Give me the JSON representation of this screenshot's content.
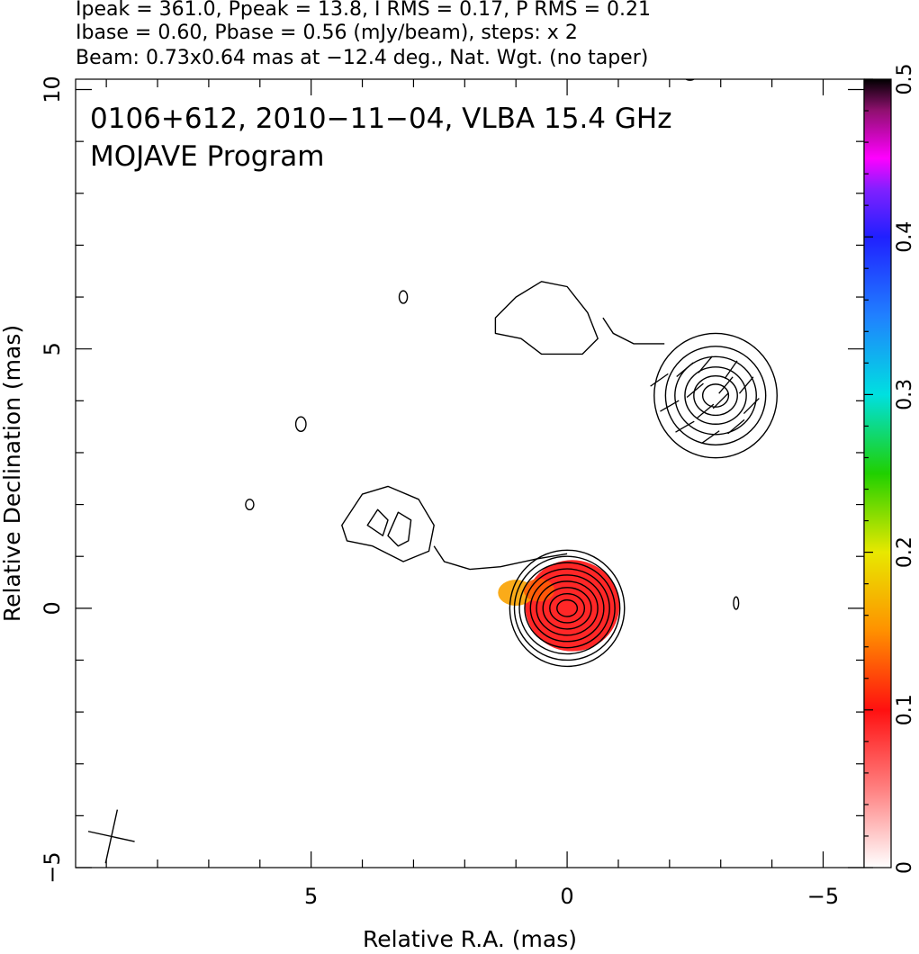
{
  "chart_data": {
    "type": "heatmap",
    "header_lines": [
      "Ipeak = 361.0, Ppeak = 13.8, I RMS = 0.17, P RMS = 0.21",
      "Ibase = 0.60, Pbase = 0.56 (mJy/beam), steps: x 2",
      "Beam: 0.73x0.64 mas at −12.4 deg., Nat. Wgt. (no taper)"
    ],
    "inset_title": "0106+612, 2010−11−04, VLBA 15.4 GHz",
    "inset_subtitle": "MOJAVE Program",
    "xlabel": "Relative R.A. (mas)",
    "ylabel": "Relative Declination (mas)",
    "xlim": [
      9.6,
      -5.8
    ],
    "ylim": [
      -5.0,
      10.2
    ],
    "x_ticks": [
      {
        "value": 5,
        "label": "5"
      },
      {
        "value": 0,
        "label": "0"
      },
      {
        "value": -5,
        "label": "−5"
      }
    ],
    "y_ticks": [
      {
        "value": -5,
        "label": "−5"
      },
      {
        "value": 0,
        "label": "0"
      },
      {
        "value": 5,
        "label": "5"
      },
      {
        "value": 10,
        "label": "10"
      }
    ],
    "colorbar": {
      "range": [
        0,
        0.5
      ],
      "ticks": [
        {
          "value": 0,
          "label": "0"
        },
        {
          "value": 0.1,
          "label": "0.1"
        },
        {
          "value": 0.2,
          "label": "0.2"
        },
        {
          "value": 0.3,
          "label": "0.3"
        },
        {
          "value": 0.4,
          "label": "0.4"
        },
        {
          "value": 0.5,
          "label": "0.5"
        }
      ],
      "stops": [
        {
          "value": 0.0,
          "color": "#ffffff"
        },
        {
          "value": 0.05,
          "color": "#ff8080"
        },
        {
          "value": 0.1,
          "color": "#ff1010"
        },
        {
          "value": 0.15,
          "color": "#ff9000"
        },
        {
          "value": 0.2,
          "color": "#e8e800"
        },
        {
          "value": 0.25,
          "color": "#20d000"
        },
        {
          "value": 0.3,
          "color": "#00e0e0"
        },
        {
          "value": 0.35,
          "color": "#2080ff"
        },
        {
          "value": 0.4,
          "color": "#2020ff"
        },
        {
          "value": 0.43,
          "color": "#8020ff"
        },
        {
          "value": 0.45,
          "color": "#ff00ff"
        },
        {
          "value": 0.48,
          "color": "#901070"
        },
        {
          "value": 0.5,
          "color": "#000000"
        }
      ]
    },
    "contour_groups": [
      {
        "name": "core",
        "cx": 0.0,
        "cy": 0.0,
        "radii": [
          1.12,
          1.0,
          0.88,
          0.76,
          0.64,
          0.52,
          0.4,
          0.28,
          0.16
        ]
      },
      {
        "name": "knot",
        "cx": -2.9,
        "cy": 4.1,
        "radii": [
          1.2,
          0.95,
          0.75,
          0.55,
          0.38,
          0.22
        ]
      }
    ],
    "blobs": [
      {
        "name": "upper-jet-blob",
        "points": [
          [
            1.4,
            5.6
          ],
          [
            1.0,
            6.0
          ],
          [
            0.5,
            6.3
          ],
          [
            0.0,
            6.2
          ],
          [
            -0.4,
            5.7
          ],
          [
            -0.6,
            5.2
          ],
          [
            -0.3,
            4.9
          ],
          [
            0.5,
            4.9
          ],
          [
            0.9,
            5.2
          ],
          [
            1.4,
            5.3
          ]
        ]
      },
      {
        "name": "lower-jet-blob",
        "points": [
          [
            4.4,
            1.6
          ],
          [
            4.0,
            2.2
          ],
          [
            3.5,
            2.35
          ],
          [
            2.9,
            2.1
          ],
          [
            2.6,
            1.6
          ],
          [
            2.7,
            1.1
          ],
          [
            3.2,
            0.9
          ],
          [
            3.8,
            1.2
          ],
          [
            4.3,
            1.3
          ]
        ]
      },
      {
        "name": "lower-blob-inner-a",
        "points": [
          [
            3.9,
            1.6
          ],
          [
            3.7,
            1.9
          ],
          [
            3.5,
            1.7
          ],
          [
            3.6,
            1.4
          ]
        ]
      },
      {
        "name": "lower-blob-inner-b",
        "points": [
          [
            3.5,
            1.4
          ],
          [
            3.3,
            1.85
          ],
          [
            3.05,
            1.7
          ],
          [
            3.1,
            1.3
          ],
          [
            3.3,
            1.2
          ]
        ]
      }
    ],
    "small_islands": [
      {
        "x": 5.2,
        "y": 3.55,
        "rx": 0.1,
        "ry": 0.14
      },
      {
        "x": 6.2,
        "y": 2.0,
        "rx": 0.08,
        "ry": 0.1
      },
      {
        "x": 3.2,
        "y": 6.0,
        "rx": 0.08,
        "ry": 0.12
      },
      {
        "x": -2.4,
        "y": 10.3,
        "rx": 0.14,
        "ry": 0.12
      },
      {
        "x": -3.3,
        "y": 0.1,
        "rx": 0.05,
        "ry": 0.12
      }
    ],
    "polarization_patches": [
      {
        "x": -0.1,
        "y": 0.05,
        "rx": 0.92,
        "ry": 0.88,
        "value": 0.1
      },
      {
        "x": 1.0,
        "y": 0.3,
        "rx": 0.35,
        "ry": 0.25,
        "value": 0.16
      },
      {
        "x": 0.55,
        "y": 0.35,
        "rx": 0.3,
        "ry": 0.22,
        "value": 0.13
      }
    ],
    "evpa_ticks": [
      {
        "x": -1.8,
        "y": 4.4,
        "angle": 35
      },
      {
        "x": -2.3,
        "y": 4.6,
        "angle": 40
      },
      {
        "x": -2.7,
        "y": 4.7,
        "angle": 50
      },
      {
        "x": -3.2,
        "y": 4.6,
        "angle": 55
      },
      {
        "x": -3.5,
        "y": 4.3,
        "angle": 50
      },
      {
        "x": -3.6,
        "y": 3.9,
        "angle": 45
      },
      {
        "x": -3.3,
        "y": 3.5,
        "angle": 40
      },
      {
        "x": -2.8,
        "y": 3.3,
        "angle": 35
      },
      {
        "x": -2.3,
        "y": 3.5,
        "angle": 30
      },
      {
        "x": -2.0,
        "y": 3.9,
        "angle": 30
      },
      {
        "x": -2.5,
        "y": 4.2,
        "angle": 40
      },
      {
        "x": -3.0,
        "y": 4.0,
        "angle": 45
      },
      {
        "x": -2.7,
        "y": 3.8,
        "angle": 40
      },
      {
        "x": -3.1,
        "y": 4.3,
        "angle": 50
      }
    ],
    "beam": {
      "x": 8.9,
      "y": -4.4,
      "major": 0.73,
      "minor": 0.64,
      "pa_deg": -12.4
    }
  }
}
